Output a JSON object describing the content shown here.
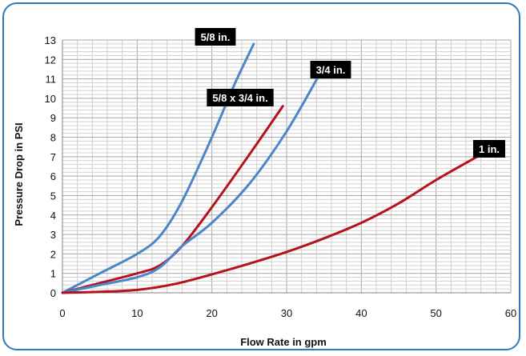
{
  "chart_data": {
    "type": "line",
    "title": "",
    "xlabel": "Flow Rate in gpm",
    "ylabel": "Pressure Drop in PSI",
    "xlim": [
      0,
      60
    ],
    "ylim": [
      0,
      13
    ],
    "x_ticks": [
      0,
      10,
      20,
      30,
      40,
      50,
      60
    ],
    "y_ticks": [
      0,
      1,
      2,
      3,
      4,
      5,
      6,
      7,
      8,
      9,
      10,
      11,
      12,
      13
    ],
    "grid": true,
    "legend": "inline labels near line ends",
    "series": [
      {
        "name": "5/8 in.",
        "color": "#4a86c8",
        "x": [
          0,
          5,
          10,
          13,
          16,
          20,
          23,
          25.6
        ],
        "y": [
          0,
          1.0,
          2.0,
          2.9,
          4.7,
          8.0,
          10.7,
          12.8
        ]
      },
      {
        "name": "5/8 x 3/4 in.",
        "color": "#b5121b",
        "x": [
          0,
          5,
          10,
          13,
          16,
          20,
          25,
          29.5
        ],
        "y": [
          0,
          0.5,
          1.0,
          1.4,
          2.4,
          4.4,
          7.1,
          9.6
        ]
      },
      {
        "name": "3/4 in.",
        "color": "#4a86c8",
        "x": [
          0,
          5,
          10,
          13,
          16,
          20,
          25,
          30,
          34.5
        ],
        "y": [
          0,
          0.4,
          0.8,
          1.3,
          2.4,
          3.6,
          5.6,
          8.3,
          11.3
        ]
      },
      {
        "name": "1 in.",
        "color": "#b5121b",
        "x": [
          0,
          5,
          10,
          15,
          20,
          25,
          30,
          35,
          40,
          45,
          50,
          55.5
        ],
        "y": [
          0,
          0.05,
          0.15,
          0.45,
          0.95,
          1.5,
          2.1,
          2.8,
          3.6,
          4.6,
          5.8,
          7.0
        ]
      }
    ],
    "colors": {
      "frame": "#2f78b8",
      "blue": "#4a86c8",
      "red": "#b5121b",
      "label_bg": "#000000",
      "grid": "#bfbfbf"
    }
  }
}
